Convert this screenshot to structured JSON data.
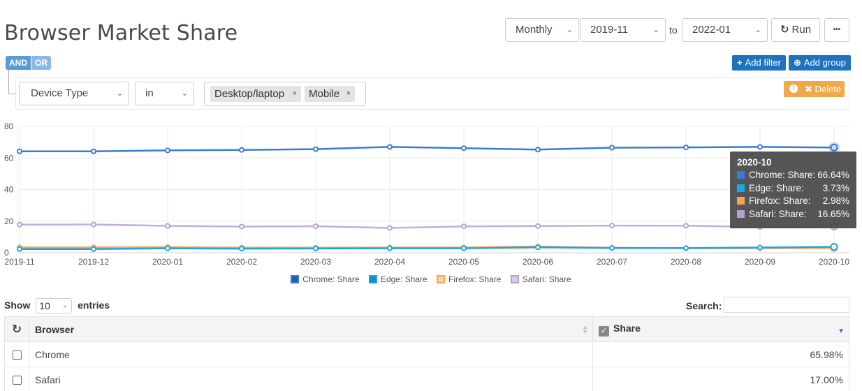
{
  "page": {
    "title": "Browser Market Share"
  },
  "toolbar": {
    "period": "Monthly",
    "from": "2019-11",
    "to_label": "to",
    "to": "2022-01",
    "run_label": "Run",
    "more_label": "•••"
  },
  "filters": {
    "and_label": "AND",
    "or_label": "OR",
    "add_filter_label": "Add filter",
    "add_group_label": "Add group",
    "field": "Device Type",
    "operator": "in",
    "values": [
      "Desktop/laptop",
      "Mobile"
    ],
    "remove_glyph": "×",
    "delete_label": "Delete"
  },
  "chart_data": {
    "type": "line",
    "x": [
      "2019-11",
      "2019-12",
      "2020-01",
      "2020-02",
      "2020-03",
      "2020-04",
      "2020-05",
      "2020-06",
      "2020-07",
      "2020-08",
      "2020-09",
      "2020-10"
    ],
    "ylim": [
      0,
      80
    ],
    "yticks": [
      0,
      20,
      40,
      60,
      80
    ],
    "grid": true,
    "legend_position": "bottom",
    "series": [
      {
        "name": "Chrome: Share",
        "color": "#3a7bd5",
        "values": [
          64.2,
          64.2,
          64.8,
          65.1,
          65.6,
          67.0,
          66.2,
          65.3,
          66.5,
          66.7,
          67.0,
          66.64
        ]
      },
      {
        "name": "Edge: Share",
        "color": "#19a9e5",
        "values": [
          2.3,
          2.3,
          2.8,
          2.6,
          2.7,
          2.8,
          2.8,
          3.4,
          3.0,
          3.0,
          3.3,
          3.73
        ]
      },
      {
        "name": "Firefox: Share",
        "color": "#f5a45a",
        "values": [
          3.4,
          3.4,
          3.6,
          3.3,
          3.2,
          3.3,
          3.3,
          4.0,
          3.2,
          2.8,
          2.9,
          2.98
        ]
      },
      {
        "name": "Safari: Share",
        "color": "#b79fd6",
        "values": [
          17.8,
          17.9,
          17.0,
          16.6,
          16.8,
          15.7,
          16.7,
          16.9,
          17.2,
          17.1,
          16.4,
          16.65
        ]
      }
    ],
    "tooltip": {
      "title": "2020-10",
      "rows": [
        {
          "label": "Chrome: Share:",
          "value": "66.64%",
          "color": "#3a7bd5"
        },
        {
          "label": "Edge: Share:",
          "value": "3.73%",
          "color": "#19a9e5"
        },
        {
          "label": "Firefox: Share:",
          "value": "2.98%",
          "color": "#f5a45a"
        },
        {
          "label": "Safari: Share:",
          "value": "16.65%",
          "color": "#b79fd6"
        }
      ]
    }
  },
  "table": {
    "show_label": "Show",
    "page_length": "10",
    "entries_label": "entries",
    "search_label": "Search:",
    "columns": [
      "Browser",
      "Share"
    ],
    "rows": [
      {
        "browser": "Chrome",
        "share": "65.98%"
      },
      {
        "browser": "Safari",
        "share": "17.00%"
      }
    ]
  }
}
